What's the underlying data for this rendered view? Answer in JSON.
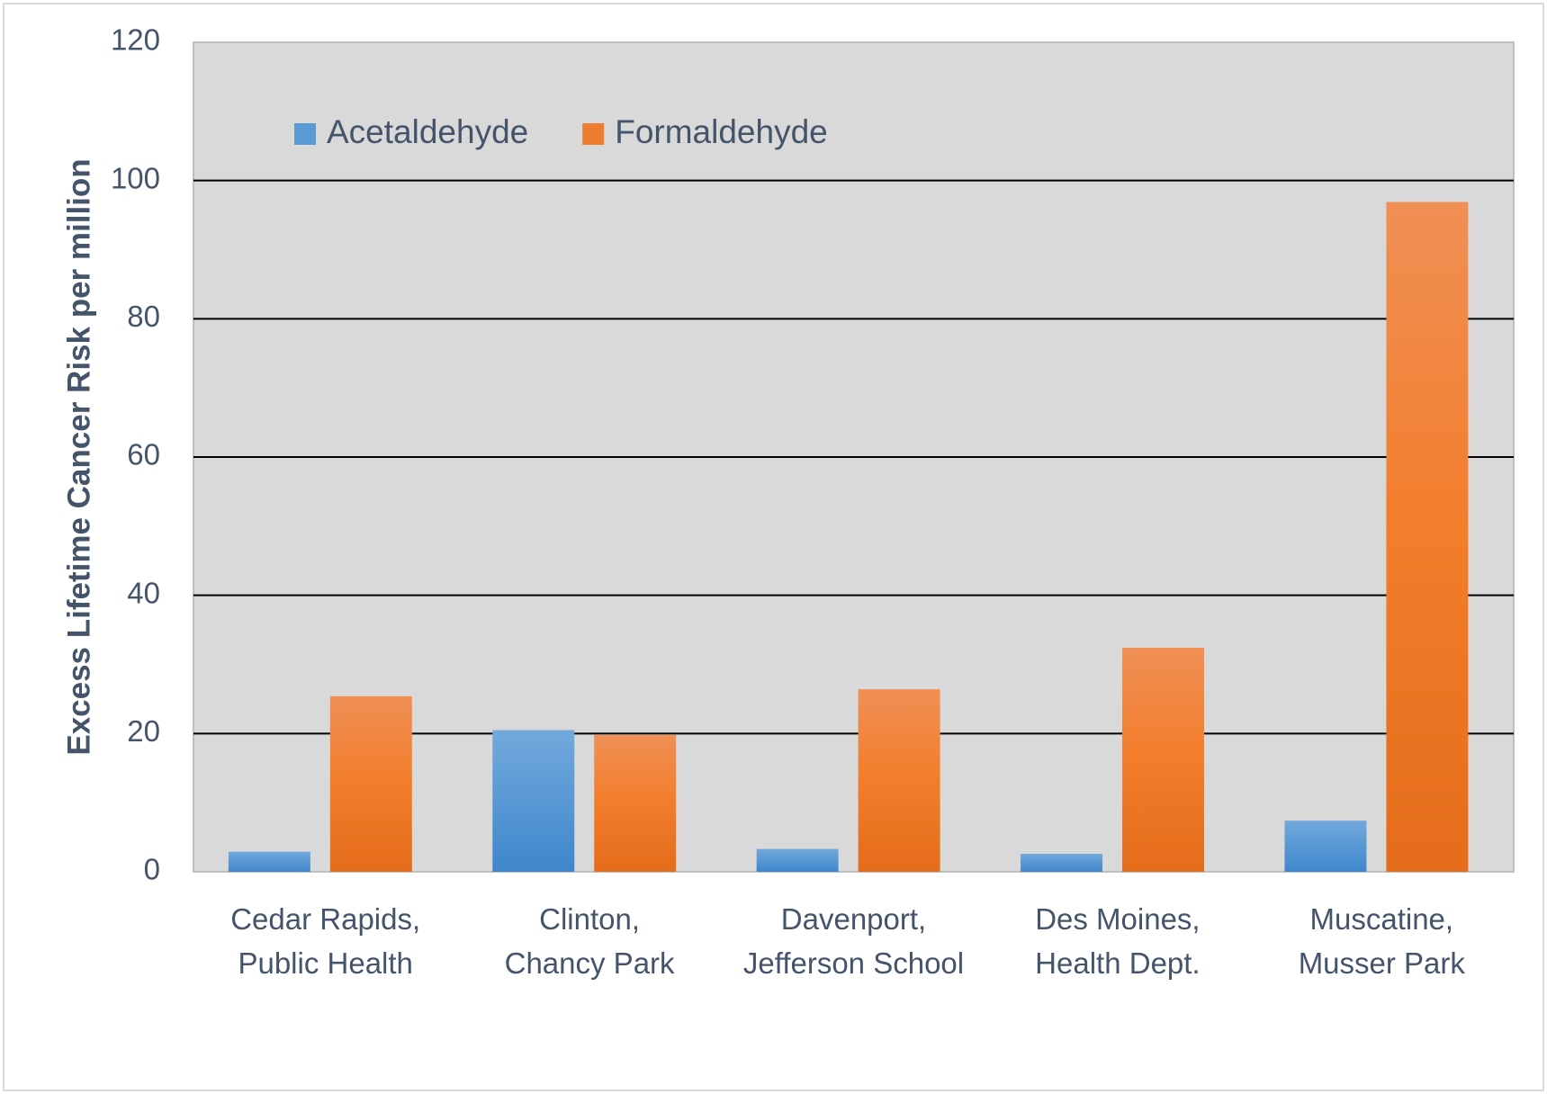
{
  "chart_data": {
    "type": "bar",
    "y_axis_label": "Excess Lifetime Cancer Risk per million",
    "categories": [
      "Cedar Rapids, Public Health",
      "Clinton, Chancy Park",
      "Davenport, Jefferson School",
      "Des Moines, Health Dept.",
      "Muscatine, Musser Park"
    ],
    "series": [
      {
        "name": "Acetaldehyde",
        "color": "#5b9bd5",
        "values": [
          2.9,
          20.5,
          3.3,
          2.6,
          7.4
        ]
      },
      {
        "name": "Formaldehyde",
        "color": "#ed7d31",
        "values": [
          25.4,
          19.8,
          26.4,
          32.4,
          96.9
        ]
      }
    ],
    "ylim": [
      0,
      120
    ],
    "yticks": [
      0,
      20,
      40,
      60,
      80,
      100,
      120
    ],
    "grid": true,
    "legend": "top-left"
  }
}
